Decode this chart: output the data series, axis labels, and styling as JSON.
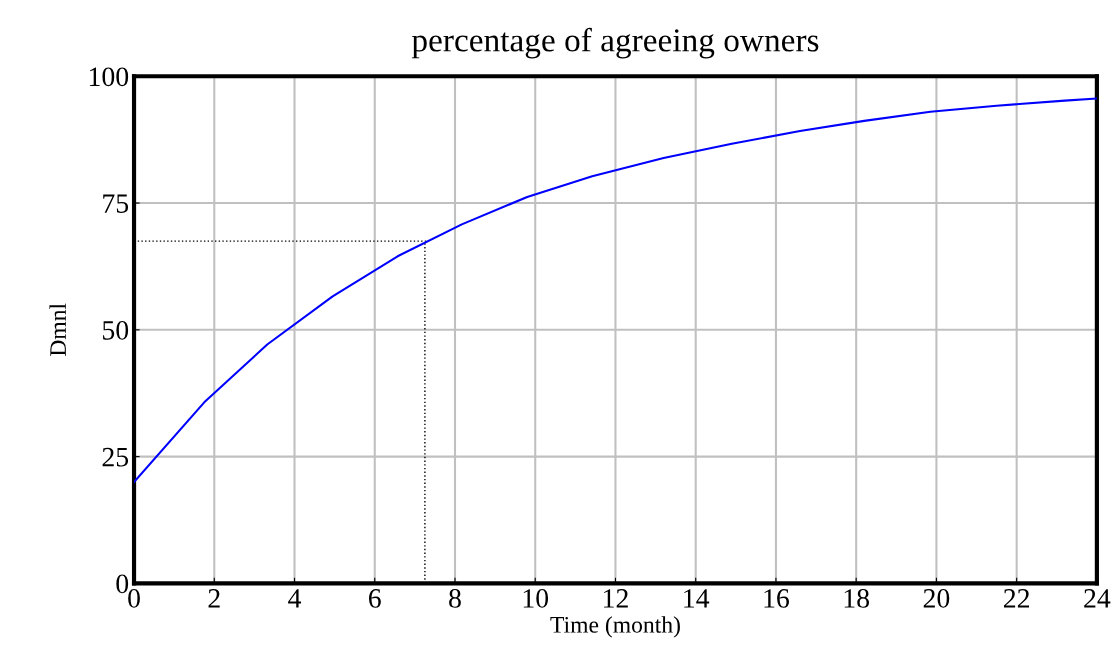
{
  "chart_data": {
    "type": "line",
    "title": "percentage of agreeing owners",
    "xlabel": "Time (month)",
    "ylabel": "Dmnl",
    "x": [
      0,
      1.75,
      3.32,
      4.95,
      6.57,
      8.17,
      9.8,
      11.42,
      13.2,
      14.9,
      16.6,
      18.2,
      19.85,
      21.5,
      23.2,
      24
    ],
    "series": [
      {
        "color": "#0000ff",
        "values": [
          20,
          35.7,
          47.1,
          56.6,
          64.5,
          70.8,
          76.2,
          80.3,
          83.9,
          86.7,
          89.2,
          91.2,
          93.0,
          94.2,
          95.2,
          95.6
        ]
      }
    ],
    "xlim": [
      0,
      24
    ],
    "xticks": [
      0,
      2,
      4,
      6,
      8,
      10,
      12,
      14,
      16,
      18,
      20,
      22,
      24
    ],
    "ylim": [
      0,
      100
    ],
    "yticks": [
      0,
      25,
      50,
      75,
      100
    ],
    "grid": true,
    "line_style": "solid",
    "ref_lines": [
      {
        "axis": "x",
        "value": 7.25,
        "color": "#000000",
        "line_style": "dotted"
      },
      {
        "axis": "y",
        "value": 67.5,
        "color": "#000000",
        "line_style": "dotted"
      }
    ]
  }
}
